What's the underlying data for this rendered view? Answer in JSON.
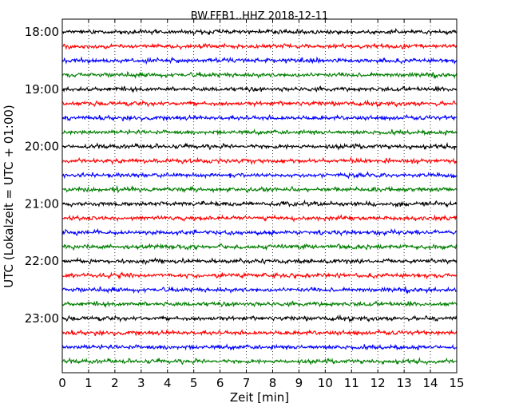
{
  "chart_data": {
    "type": "line",
    "title": "BW.FFB1..HHZ 2018-12-11",
    "xlabel": "Zeit  [min]",
    "ylabel": "UTC (Lokalzeit = UTC + 01:00)",
    "xlim": [
      0,
      15
    ],
    "x_ticks": [
      "0",
      "1",
      "2",
      "3",
      "4",
      "5",
      "6",
      "7",
      "8",
      "9",
      "10",
      "11",
      "12",
      "13",
      "14",
      "15"
    ],
    "y_ticks": [
      "18:00",
      "19:00",
      "20:00",
      "21:00",
      "22:00",
      "23:00"
    ],
    "grid": "vertical dotted",
    "trace_offsets_hours": [
      18.0,
      18.25,
      18.5,
      18.75,
      19.0,
      19.25,
      19.5,
      19.75,
      20.0,
      20.25,
      20.5,
      20.75,
      21.0,
      21.25,
      21.5,
      21.75,
      22.0,
      22.25,
      22.5,
      22.75,
      23.0,
      23.25,
      23.5,
      23.75
    ],
    "trace_colors": [
      "#000000",
      "#ff0000",
      "#0000ff",
      "#007f00"
    ]
  }
}
